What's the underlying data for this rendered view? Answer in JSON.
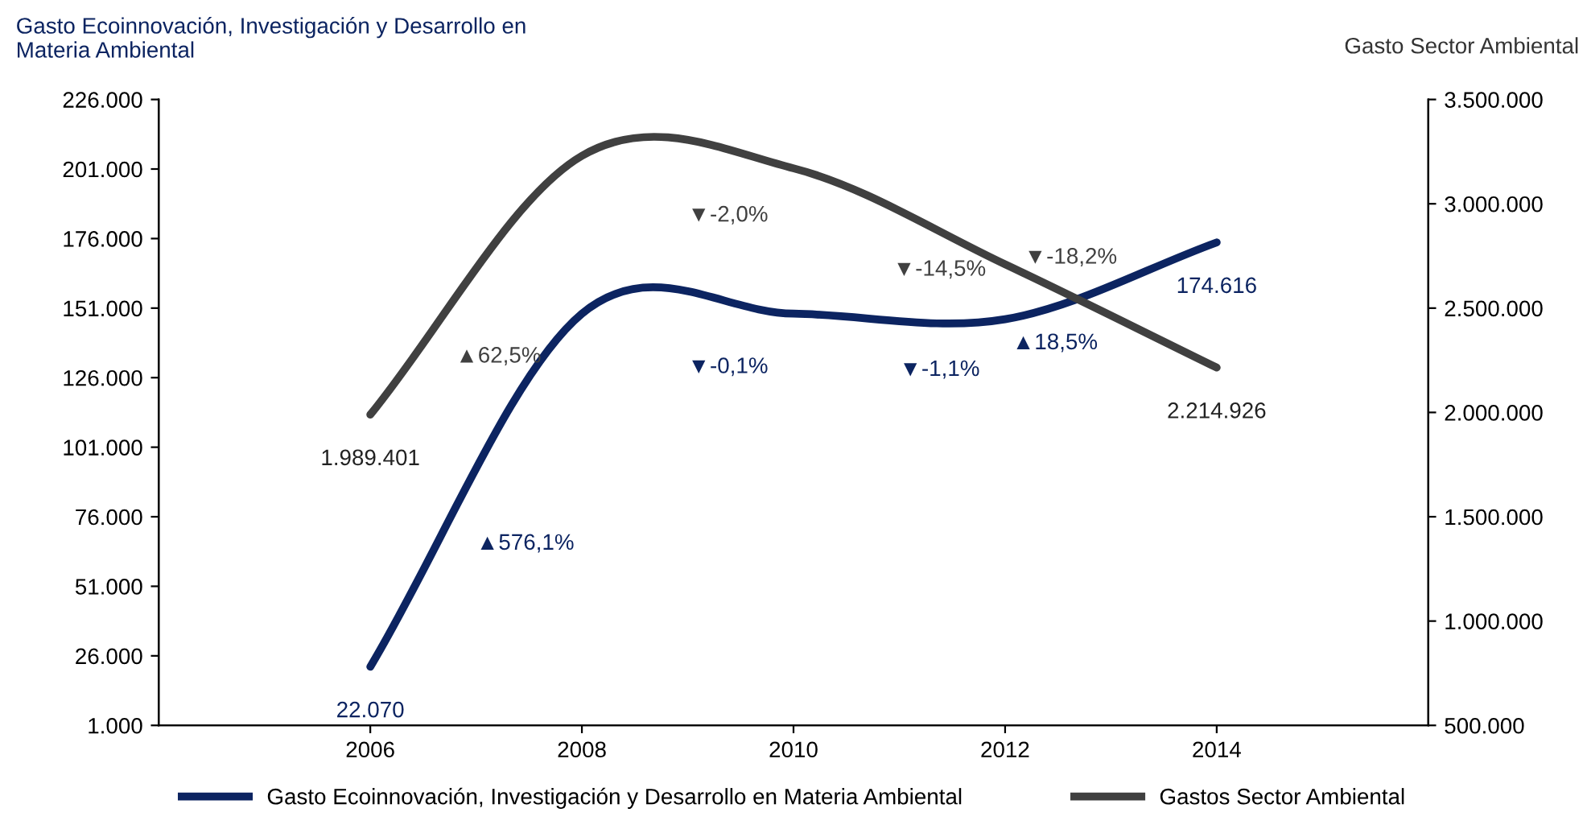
{
  "chart_data": {
    "type": "line",
    "ylabel": "Gasto Ecoinnovación, Investigación y Desarrollo en\nMateria Ambiental",
    "y2label": "Gasto Sector Ambiental",
    "categories": [
      "2006",
      "2008",
      "2010",
      "2012",
      "2014"
    ],
    "series": [
      {
        "name": "Gasto Ecoinnovación, Investigación y Desarrollo en Materia Ambiental",
        "color": "#0c2461",
        "values": [
          22070,
          149000,
          149000,
          147000,
          174616
        ],
        "value_labels": [
          "22.070",
          null,
          null,
          null,
          "174.616"
        ]
      },
      {
        "name": "Gastos Sector Ambiental",
        "color": "#404040",
        "axis": "y2",
        "values": [
          1989401,
          3230000,
          3170000,
          2710000,
          2214926
        ],
        "value_labels": [
          "1.989.401",
          null,
          null,
          null,
          "2.214.926"
        ]
      }
    ],
    "ylim": [
      1000,
      226000
    ],
    "yticks": [
      {
        "value": 1000,
        "label": "1.000"
      },
      {
        "value": 26000,
        "label": "26.000"
      },
      {
        "value": 51000,
        "label": "51.000"
      },
      {
        "value": 76000,
        "label": "76.000"
      },
      {
        "value": 101000,
        "label": "101.000"
      },
      {
        "value": 126000,
        "label": "126.000"
      },
      {
        "value": 151000,
        "label": "151.000"
      },
      {
        "value": 176000,
        "label": "176.000"
      },
      {
        "value": 201000,
        "label": "201.000"
      },
      {
        "value": 226000,
        "label": "226.000"
      }
    ],
    "y2lim": [
      500000,
      3500000
    ],
    "y2ticks": [
      {
        "value": 500000,
        "label": "500.000"
      },
      {
        "value": 1000000,
        "label": "1.000.000"
      },
      {
        "value": 1500000,
        "label": "1.500.000"
      },
      {
        "value": 2000000,
        "label": "2.000.000"
      },
      {
        "value": 2500000,
        "label": "2.500.000"
      },
      {
        "value": 3000000,
        "label": "3.000.000"
      },
      {
        "value": 3500000,
        "label": "3.500.000"
      }
    ],
    "annotations": [
      "▲576,1%",
      "▼-0,1%",
      "▼-1,1%",
      "▲18,5%",
      "▲62,5%",
      "▼-2,0%",
      "▼-14,5%",
      "▼-18,2%"
    ],
    "legend": "bottom",
    "grid": false,
    "marker": "none",
    "line_style": "solid"
  }
}
